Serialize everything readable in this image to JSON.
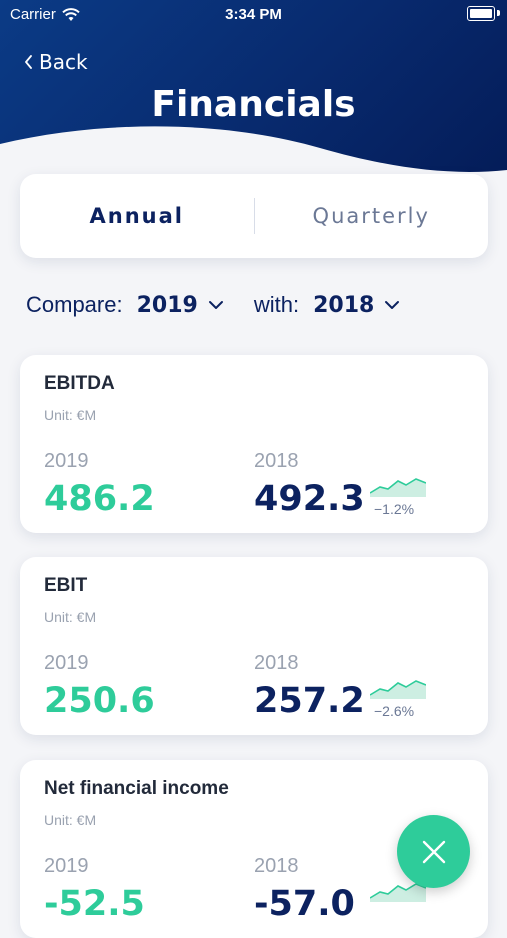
{
  "status_bar": {
    "carrier": "Carrier",
    "time": "3:34 PM"
  },
  "nav": {
    "back_label": "Back",
    "title": "Financials"
  },
  "period_tabs": [
    {
      "label": "Annual",
      "active": true
    },
    {
      "label": "Quarterly",
      "active": false
    }
  ],
  "compare": {
    "compare_label": "Compare:",
    "compare_value": "2019",
    "with_label": "with:",
    "with_value": "2018"
  },
  "cards": [
    {
      "name": "EBITDA",
      "unit": "Unit: €M",
      "year_a": "2019",
      "value_a": "486.2",
      "year_b": "2018",
      "value_b": "492.3",
      "delta": "−1.2%"
    },
    {
      "name": "EBIT",
      "unit": "Unit: €M",
      "year_a": "2019",
      "value_a": "250.6",
      "year_b": "2018",
      "value_b": "257.2",
      "delta": "−2.6%"
    },
    {
      "name": "Net financial income",
      "unit": "Unit: €M",
      "year_a": "2019",
      "value_a": "-52.5",
      "year_b": "2018",
      "value_b": "-57.0",
      "delta": ""
    }
  ],
  "colors": {
    "brand_navy": "#0c2260",
    "accent_green": "#2ecc9a",
    "header_blue": "#0b3b86"
  },
  "icons": {
    "back": "chevron-left-icon",
    "dropdown": "chevron-down-icon",
    "fab": "close-icon",
    "wifi": "wifi-icon",
    "battery": "battery-icon"
  }
}
